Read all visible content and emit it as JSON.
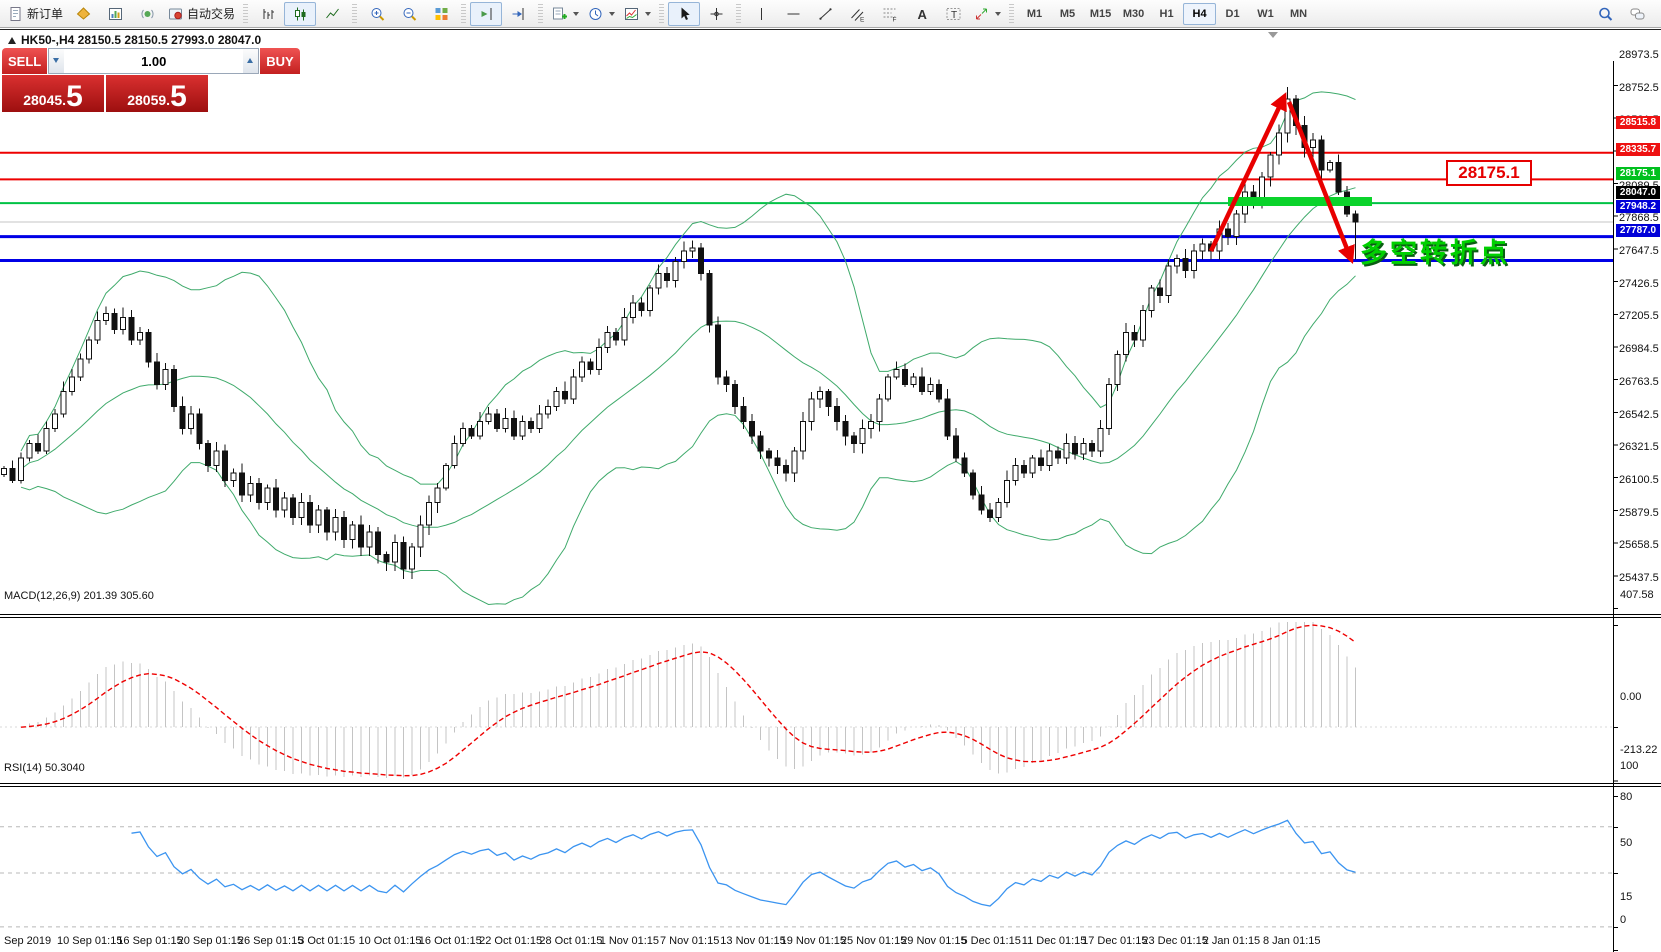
{
  "toolbar": {
    "groups": [
      {
        "items": [
          {
            "name": "new-order-button",
            "icon": "doc",
            "label": "新订单"
          },
          {
            "name": "market-watch-button",
            "icon": "mkt"
          },
          {
            "name": "charts-button",
            "icon": "cht"
          },
          {
            "name": "signals-button",
            "icon": "sig"
          },
          {
            "name": "autotrading-button",
            "icon": "auto",
            "label": "自动交易"
          }
        ]
      },
      {
        "items": [
          {
            "name": "bar-chart-button",
            "icon": "bars"
          },
          {
            "name": "candlestick-chart-button",
            "icon": "cndl",
            "active": true
          },
          {
            "name": "line-chart-button",
            "icon": "linc"
          }
        ]
      },
      {
        "items": [
          {
            "name": "zoom-in-button",
            "icon": "zin"
          },
          {
            "name": "zoom-out-button",
            "icon": "zout"
          },
          {
            "name": "tile-windows-button",
            "icon": "grid"
          }
        ]
      },
      {
        "items": [
          {
            "name": "chart-shift-button",
            "icon": "shift",
            "active": true
          },
          {
            "name": "auto-scroll-button",
            "icon": "ascr"
          }
        ]
      },
      {
        "items": [
          {
            "name": "new-chart-button",
            "icon": "newc",
            "caret": true
          },
          {
            "name": "periods-button",
            "icon": "clk",
            "caret": true
          },
          {
            "name": "templates-button",
            "icon": "tmpl",
            "caret": true
          }
        ]
      },
      {
        "items": [
          {
            "name": "cursor-button",
            "icon": "curs",
            "active": true
          },
          {
            "name": "crosshair-button",
            "icon": "cros"
          }
        ]
      },
      {
        "items": [
          {
            "name": "vertical-line-button",
            "icon": "vlin"
          },
          {
            "name": "horizontal-line-button",
            "icon": "hlin"
          },
          {
            "name": "trendline-button",
            "icon": "trnd"
          },
          {
            "name": "equidistant-channel-button",
            "icon": "chan"
          },
          {
            "name": "fibonacci-button",
            "icon": "fibo"
          },
          {
            "name": "text-button",
            "icon": "txta"
          },
          {
            "name": "text-label-button",
            "icon": "lblt"
          },
          {
            "name": "arrows-button",
            "icon": "arrw",
            "caret": true
          }
        ]
      },
      {
        "kind": "timeframes",
        "items": [
          {
            "name": "timeframe-m1-button",
            "label": "M1"
          },
          {
            "name": "timeframe-m5-button",
            "label": "M5"
          },
          {
            "name": "timeframe-m15-button",
            "label": "M15"
          },
          {
            "name": "timeframe-m30-button",
            "label": "M30"
          },
          {
            "name": "timeframe-h1-button",
            "label": "H1"
          },
          {
            "name": "timeframe-h4-button",
            "label": "H4",
            "active": true
          },
          {
            "name": "timeframe-d1-button",
            "label": "D1"
          },
          {
            "name": "timeframe-w1-button",
            "label": "W1"
          },
          {
            "name": "timeframe-mn-button",
            "label": "MN"
          }
        ]
      }
    ],
    "right_items": [
      {
        "name": "search-button",
        "icon": "srch"
      },
      {
        "name": "chat-button",
        "icon": "chat"
      }
    ]
  },
  "chart": {
    "title": "HK50-,H4  28150.5 28150.5 27993.0 28047.0"
  },
  "trade_panel": {
    "sell_label": "SELL",
    "buy_label": "BUY",
    "volume": "1.00",
    "dot": ".",
    "sell_price_int": "28045",
    "sell_price_frac": "5",
    "buy_price_int": "28059",
    "buy_price_frac": "5"
  },
  "price_axis": {
    "ticks": [
      28973.5,
      28752.5,
      28531.5,
      28310.5,
      28089.5,
      27868.5,
      27647.5,
      27426.5,
      27205.5,
      26984.5,
      26763.5,
      26542.5,
      26321.5,
      26100.5,
      25879.5,
      25658.5,
      25437.5
    ]
  },
  "levels": [
    {
      "price": 28515.8,
      "label": "28515.8",
      "color": "#ee0000",
      "bg": "#ee1111",
      "width": 2
    },
    {
      "price": 28335.7,
      "label": "28335.7",
      "color": "#ee0000",
      "bg": "#ee1111",
      "width": 2
    },
    {
      "price": 28175.1,
      "label": "28175.1",
      "color": "#00c244",
      "bg": "#00c01e",
      "width": 2
    },
    {
      "price": 27948.2,
      "label": "27948.2",
      "color": "#0000e6",
      "bg": "#0000d8",
      "width": 3
    },
    {
      "price": 27787.0,
      "label": "27787.0",
      "color": "#0000e6",
      "bg": "#0000d8",
      "width": 3
    }
  ],
  "current_price": {
    "value": 28047.0,
    "label": "28047.0",
    "color": "#c0c0c0",
    "bg": "#000000"
  },
  "macd": {
    "label": "MACD(12,26,9) 201.39 305.60",
    "axis": [
      "407.58",
      "0.00",
      "-213.22"
    ]
  },
  "rsi": {
    "label": "RSI(14) 50.3040",
    "axis": [
      100,
      80,
      50,
      15,
      0
    ],
    "dashed_levels": [
      80,
      50,
      15
    ]
  },
  "time_axis": {
    "labels": [
      "Sep 2019",
      "10 Sep 01:15",
      "16 Sep 01:15",
      "20 Sep 01:15",
      "26 Sep 01:15",
      "3 Oct 01:15",
      "10 Oct 01:15",
      "16 Oct 01:15",
      "22 Oct 01:15",
      "28 Oct 01:15",
      "1 Nov 01:15",
      "7 Nov 01:15",
      "13 Nov 01:15",
      "19 Nov 01:15",
      "25 Nov 01:15",
      "29 Nov 01:15",
      "5 Dec 01:15",
      "11 Dec 01:15",
      "17 Dec 01:15",
      "23 Dec 01:15",
      "2 Jan 01:15",
      "8 Jan 01:15"
    ]
  },
  "annotations": {
    "price_box": "28175.1",
    "turning_point": "多空转折点",
    "support_zone_price": 28175.1
  },
  "chart_data": {
    "type": "candlestick",
    "symbol": "HK50-",
    "timeframe": "H4",
    "ohlc_header": [
      28150.5,
      28150.5,
      27993.0,
      28047.0
    ],
    "y_axis_ticks": [
      28973.5,
      28752.5,
      28531.5,
      28310.5,
      28089.5,
      27868.5,
      27647.5,
      27426.5,
      27205.5,
      26984.5,
      26763.5,
      26542.5,
      26321.5,
      26100.5,
      25879.5,
      25658.5,
      25437.5
    ],
    "closes": [
      26380,
      26300,
      26450,
      26550,
      26500,
      26650,
      26750,
      26900,
      27000,
      27120,
      27250,
      27380,
      27430,
      27320,
      27400,
      27250,
      27300,
      27100,
      26950,
      27050,
      26800,
      26650,
      26750,
      26550,
      26400,
      26500,
      26300,
      26350,
      26200,
      26280,
      26150,
      26250,
      26100,
      26180,
      26050,
      26150,
      26000,
      26100,
      25950,
      26050,
      25900,
      26000,
      25850,
      25950,
      25800,
      25750,
      25880,
      25700,
      25850,
      26000,
      26150,
      26250,
      26400,
      26550,
      26650,
      26600,
      26700,
      26750,
      26650,
      26720,
      26600,
      26700,
      26650,
      26750,
      26800,
      26900,
      26850,
      27000,
      27100,
      27050,
      27200,
      27300,
      27250,
      27400,
      27500,
      27450,
      27600,
      27700,
      27650,
      27780,
      27850,
      27870,
      27700,
      27350,
      27000,
      26950,
      26800,
      26700,
      26600,
      26500,
      26450,
      26400,
      26350,
      26500,
      26700,
      26850,
      26900,
      26800,
      26700,
      26600,
      26550,
      26650,
      26700,
      26850,
      27000,
      27050,
      26950,
      27000,
      26900,
      26950,
      26850,
      26600,
      26450,
      26350,
      26200,
      26100,
      26050,
      26150,
      26300,
      26400,
      26350,
      26450,
      26400,
      26500,
      26450,
      26550,
      26480,
      26550,
      26500,
      26650,
      26950,
      27150,
      27300,
      27250,
      27450,
      27600,
      27550,
      27750,
      27800,
      27720,
      27850,
      27900,
      27850,
      28000,
      27950,
      28100,
      28250,
      28200,
      28350,
      28500,
      28650,
      28880,
      28700,
      28550,
      28600,
      28400,
      28450,
      28250,
      28100,
      28047
    ],
    "indicators": [
      {
        "name": "Bollinger Bands",
        "period": 20,
        "deviation": 2
      },
      {
        "name": "MACD",
        "params": [
          12,
          26,
          9
        ],
        "values": [
          201.39,
          305.6
        ],
        "axis_range": [
          -213.22,
          407.58
        ]
      },
      {
        "name": "RSI",
        "period": 14,
        "value": 50.304,
        "levels": [
          80,
          50,
          15
        ]
      }
    ],
    "horizontal_lines": [
      28515.8,
      28335.7,
      28175.1,
      27948.2,
      27787.0
    ],
    "current_price": 28047.0
  }
}
